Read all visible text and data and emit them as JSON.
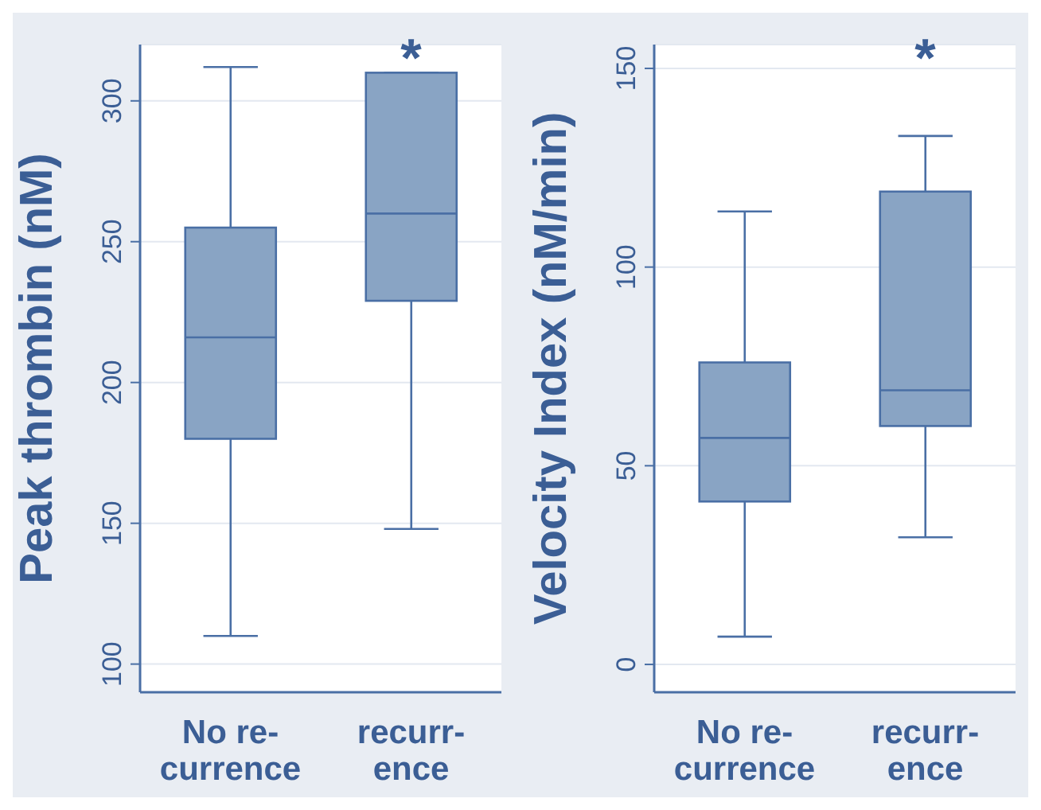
{
  "chart_data": [
    {
      "type": "box",
      "ylabel": "Peak thrombin (nM)",
      "categories": [
        "No re-\ncurrence",
        "recurr-\nence"
      ],
      "ylim": [
        90,
        320
      ],
      "yticks": [
        100,
        150,
        200,
        250,
        300
      ],
      "grid": "y",
      "series": [
        {
          "color": "#89a4c4",
          "boxes": [
            {
              "low": 110,
              "q1": 180,
              "median": 216,
              "q3": 255,
              "high": 312
            },
            {
              "low": 148,
              "q1": 229,
              "median": 260,
              "q3": 310,
              "high": 310
            }
          ]
        }
      ],
      "annotations": [
        "*"
      ]
    },
    {
      "type": "box",
      "ylabel": "Velocity Index (nM/min)",
      "categories": [
        "No re-\ncurrence",
        "recurr-\nence"
      ],
      "ylim": [
        -7,
        156
      ],
      "yticks": [
        0,
        50,
        100,
        150
      ],
      "grid": "y",
      "series": [
        {
          "color": "#89a4c4",
          "boxes": [
            {
              "low": 7,
              "q1": 41,
              "median": 57,
              "q3": 76,
              "high": 114
            },
            {
              "low": 32,
              "q1": 60,
              "median": 69,
              "q3": 119,
              "high": 133
            }
          ]
        }
      ],
      "annotations": [
        "*"
      ]
    }
  ]
}
